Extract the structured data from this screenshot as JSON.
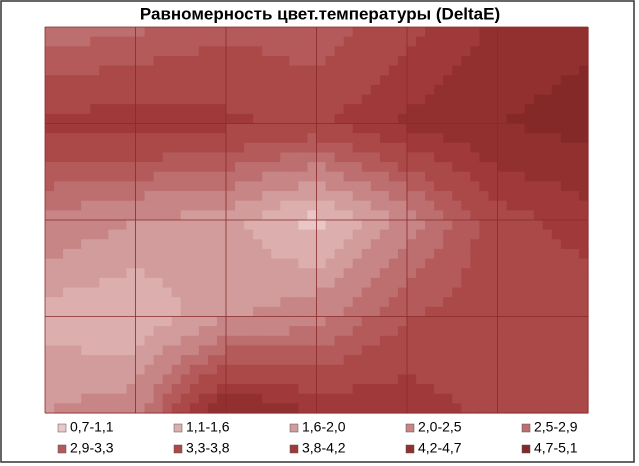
{
  "chart_data": {
    "type": "contour",
    "title": "Равномерность цвет.температуры (DeltaE)",
    "z": [
      [
        2.6,
        2.8,
        3.2,
        3.0,
        3.6,
        4.3,
        4.6
      ],
      [
        3.9,
        4.1,
        3.9,
        3.7,
        4.3,
        4.7,
        4.9
      ],
      [
        2.4,
        2.0,
        1.8,
        0.9,
        2.2,
        3.6,
        4.0
      ],
      [
        1.4,
        1.2,
        1.9,
        2.3,
        3.3,
        3.6,
        3.5
      ],
      [
        2.0,
        2.3,
        4.8,
        4.2,
        4.1,
        3.6,
        3.4
      ]
    ],
    "bands": [
      {
        "label": "0,7-1,1",
        "from": 0.7,
        "to": 1.1,
        "color": "#e9c7c7"
      },
      {
        "label": "1,1-1,6",
        "from": 1.1,
        "to": 1.6,
        "color": "#dcaeae"
      },
      {
        "label": "1,6-2,0",
        "from": 1.6,
        "to": 2.0,
        "color": "#d29c9c"
      },
      {
        "label": "2,0-2,5",
        "from": 2.0,
        "to": 2.5,
        "color": "#c78585"
      },
      {
        "label": "2,5-2,9",
        "from": 2.5,
        "to": 2.9,
        "color": "#bd6e6e"
      },
      {
        "label": "2,9-3,3",
        "from": 2.9,
        "to": 3.3,
        "color": "#b55a5a"
      },
      {
        "label": "3,3-3,8",
        "from": 3.3,
        "to": 3.8,
        "color": "#ab4848"
      },
      {
        "label": "3,8-4,2",
        "from": 3.8,
        "to": 4.2,
        "color": "#a03a3a"
      },
      {
        "label": "4,2-4,7",
        "from": 4.2,
        "to": 4.7,
        "color": "#923030"
      },
      {
        "label": "4,7-5,1",
        "from": 4.7,
        "to": 5.1,
        "color": "#842828"
      }
    ]
  }
}
